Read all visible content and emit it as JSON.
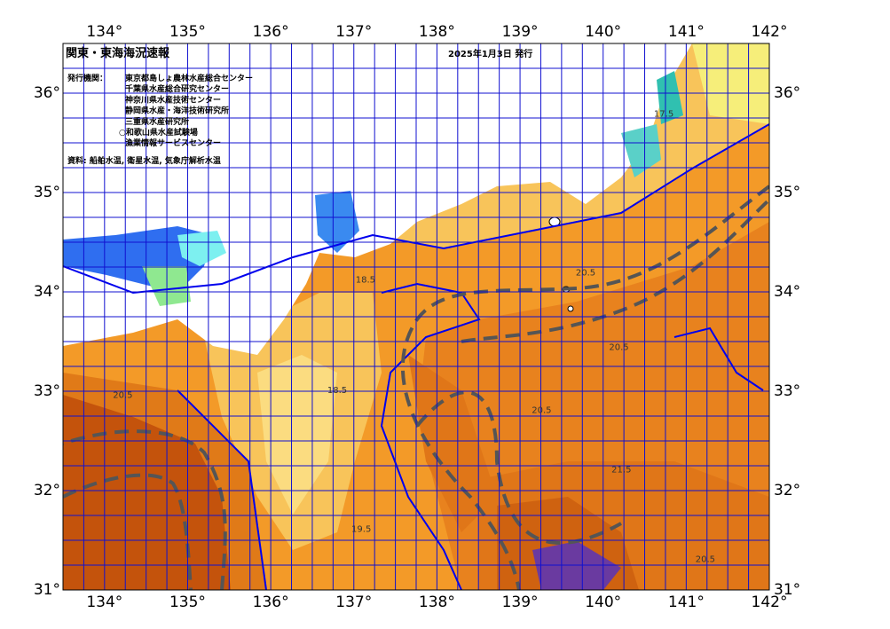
{
  "header": {
    "title": "関東・東海海況速報",
    "date": "2025年1月3日 発行"
  },
  "organizations": {
    "label": "発行機関：",
    "items": [
      "東京都島しょ農林水産総合センター",
      "千葉県水産総合研究センター",
      "神奈川県水産技術センター",
      "静岡県水産・海洋技術研究所",
      "三重県水産研究所",
      "○和歌山県水産試験場",
      "漁業情報サービスセンター"
    ]
  },
  "source": "資料: 船舶水温, 衛星水温, 気象庁解析水温",
  "map": {
    "xlim": [
      133.5,
      142
    ],
    "ylim": [
      31,
      36.5
    ],
    "grid_step": 0.25,
    "xticks": [
      {
        "value": 134,
        "label": "134°"
      },
      {
        "value": 135,
        "label": "135°"
      },
      {
        "value": 136,
        "label": "136°"
      },
      {
        "value": 137,
        "label": "137°"
      },
      {
        "value": 138,
        "label": "138°"
      },
      {
        "value": 139,
        "label": "139°"
      },
      {
        "value": 140,
        "label": "140°"
      },
      {
        "value": 141,
        "label": "141°"
      },
      {
        "value": 142,
        "label": "142°"
      }
    ],
    "yticks": [
      {
        "value": 31,
        "label": "31°"
      },
      {
        "value": 32,
        "label": "32°"
      },
      {
        "value": 33,
        "label": "33°"
      },
      {
        "value": 34,
        "label": "34°"
      },
      {
        "value": 35,
        "label": "35°"
      },
      {
        "value": 36,
        "label": "36°"
      }
    ],
    "isotherm_labels": [
      {
        "value": 18.5,
        "lon": 137.14,
        "lat": 34.12
      },
      {
        "value": 20.5,
        "lon": 139.79,
        "lat": 34.19
      },
      {
        "value": 20.5,
        "lon": 139.26,
        "lat": 32.81
      },
      {
        "value": 20.5,
        "lon": 140.19,
        "lat": 33.44
      },
      {
        "value": 19.5,
        "lon": 137.09,
        "lat": 31.61
      },
      {
        "value": 21.5,
        "lon": 140.22,
        "lat": 32.21
      },
      {
        "value": 18.5,
        "lon": 136.8,
        "lat": 33.01
      },
      {
        "value": 20.5,
        "lon": 141.23,
        "lat": 31.31
      },
      {
        "value": 20.5,
        "lon": 134.22,
        "lat": 32.96
      },
      {
        "value": 17.5,
        "lon": 140.73,
        "lat": 35.79
      }
    ]
  }
}
